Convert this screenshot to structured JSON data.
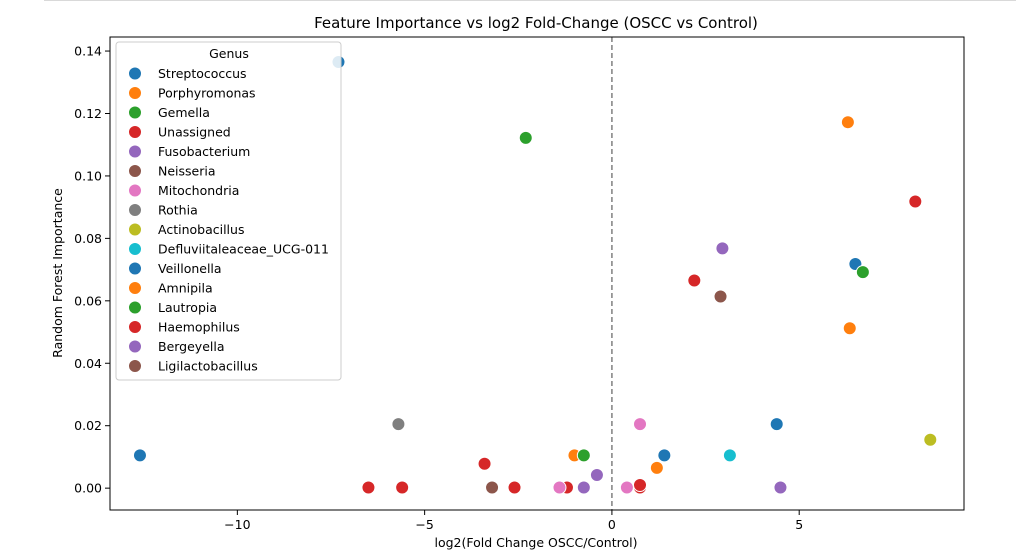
{
  "chart_data": {
    "type": "scatter",
    "title": "Feature Importance vs log2 Fold-Change (OSCC vs Control)",
    "xlabel": "log2(Fold Change OSCC/Control)",
    "ylabel": "Random Forest Importance",
    "xlim": [
      -13.4,
      9.4
    ],
    "ylim": [
      -0.007,
      0.1445
    ],
    "xticks": [
      -10,
      -5,
      0,
      5
    ],
    "xtick_labels": [
      "−10",
      "−5",
      "0",
      "5"
    ],
    "yticks": [
      0.0,
      0.02,
      0.04,
      0.06,
      0.08,
      0.1,
      0.12,
      0.14
    ],
    "ytick_labels": [
      "0.00",
      "0.02",
      "0.04",
      "0.06",
      "0.08",
      "0.10",
      "0.12",
      "0.14"
    ],
    "grid": false,
    "reference_line": {
      "x": 0,
      "style": "dashed",
      "color": "#808080"
    },
    "legend": {
      "title": "Genus",
      "placement": "top-left"
    },
    "series": [
      {
        "name": "Streptococcus",
        "color": "#1f77b4",
        "points": [
          [
            -7.3,
            0.1365
          ]
        ]
      },
      {
        "name": "Porphyromonas",
        "color": "#ff7f0e",
        "points": [
          [
            6.3,
            0.1172
          ],
          [
            -1.0,
            0.0105
          ],
          [
            1.2,
            0.0065
          ]
        ]
      },
      {
        "name": "Gemella",
        "color": "#2ca02c",
        "points": [
          [
            -2.3,
            0.1122
          ],
          [
            -0.75,
            0.0105
          ]
        ]
      },
      {
        "name": "Unassigned",
        "color": "#d62728",
        "points": [
          [
            8.1,
            0.0918
          ],
          [
            -6.5,
            0.0002
          ],
          [
            -5.6,
            0.0002
          ],
          [
            -2.6,
            0.0002
          ],
          [
            -1.2,
            0.0002
          ],
          [
            0.75,
            0.0002
          ],
          [
            0.75,
            0.001
          ]
        ]
      },
      {
        "name": "Fusobacterium",
        "color": "#9467bd",
        "points": [
          [
            2.95,
            0.0768
          ],
          [
            4.5,
            0.0002
          ],
          [
            -0.75,
            0.0002
          ],
          [
            -0.4,
            0.0042
          ]
        ]
      },
      {
        "name": "Neisseria",
        "color": "#8c564b",
        "points": [
          [
            2.9,
            0.0614
          ],
          [
            -3.2,
            0.0002
          ]
        ]
      },
      {
        "name": "Mitochondria",
        "color": "#e377c2",
        "points": [
          [
            0.75,
            0.0205
          ],
          [
            -1.4,
            0.0002
          ],
          [
            0.4,
            0.0002
          ]
        ]
      },
      {
        "name": "Rothia",
        "color": "#7f7f7f",
        "points": [
          [
            -5.7,
            0.0205
          ]
        ]
      },
      {
        "name": "Actinobacillus",
        "color": "#bcbd22",
        "points": [
          [
            8.5,
            0.0155
          ]
        ]
      },
      {
        "name": "Defluviitaleaceae_UCG-011",
        "color": "#17becf",
        "points": [
          [
            3.15,
            0.0105
          ]
        ]
      },
      {
        "name": "Veillonella",
        "color": "#1f77b4",
        "points": [
          [
            6.5,
            0.0718
          ],
          [
            4.4,
            0.0205
          ],
          [
            1.4,
            0.0105
          ],
          [
            -12.6,
            0.0105
          ]
        ]
      },
      {
        "name": "Amnipila",
        "color": "#ff7f0e",
        "points": [
          [
            6.35,
            0.0512
          ]
        ]
      },
      {
        "name": "Lautropia",
        "color": "#2ca02c",
        "points": [
          [
            6.7,
            0.0692
          ]
        ]
      },
      {
        "name": "Haemophilus",
        "color": "#d62728",
        "points": [
          [
            2.2,
            0.0665
          ],
          [
            -3.4,
            0.0078
          ]
        ]
      },
      {
        "name": "Bergeyella",
        "color": "#9467bd",
        "points": []
      },
      {
        "name": "Ligilactobacillus",
        "color": "#8c564b",
        "points": []
      }
    ]
  }
}
